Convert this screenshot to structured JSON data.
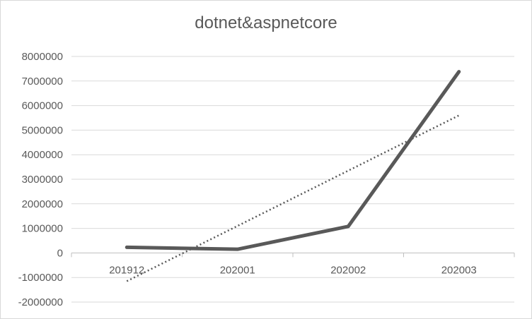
{
  "chart_data": {
    "type": "line",
    "title": "dotnet&aspnetcore",
    "categories": [
      "201912",
      "202001",
      "202002",
      "202003"
    ],
    "series": [
      {
        "values": [
          230000,
          150000,
          1080000,
          7380000
        ],
        "color": "#595959",
        "style": "solid"
      }
    ],
    "trendline": {
      "type": "linear",
      "values": [
        -1150000,
        1100000,
        3350000,
        5600000
      ],
      "color": "#595959",
      "style": "dotted"
    },
    "ylim": [
      -2000000,
      8000000
    ],
    "yticks": [
      8000000,
      7000000,
      6000000,
      5000000,
      4000000,
      3000000,
      2000000,
      1000000,
      0,
      -1000000,
      -2000000
    ],
    "grid": true,
    "legend": "none"
  }
}
